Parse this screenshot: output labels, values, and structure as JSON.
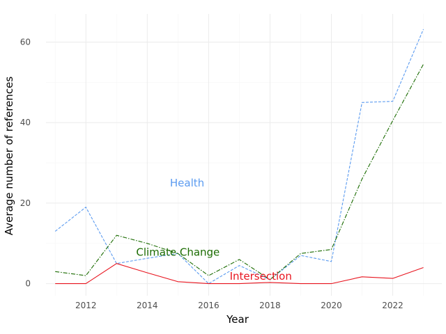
{
  "chart_data": {
    "type": "line",
    "title": "",
    "xlabel": "Year",
    "ylabel": "Average number of references",
    "x": [
      2011,
      2012,
      2013,
      2014,
      2015,
      2016,
      2017,
      2018,
      2019,
      2020,
      2021,
      2022,
      2023
    ],
    "xlim": [
      2010.7,
      2023.6
    ],
    "ylim": [
      -3,
      67
    ],
    "x_ticks": [
      2012,
      2014,
      2016,
      2018,
      2020,
      2022
    ],
    "y_ticks": [
      0,
      20,
      40,
      60
    ],
    "grid": true,
    "legend": "none (labels placed inside plot)",
    "series": [
      {
        "name": "Health",
        "color": "#5b9bf0",
        "line_style": "dashed",
        "values": [
          13,
          19,
          5,
          6.3,
          7.5,
          0,
          4.5,
          1,
          7,
          5.5,
          45,
          45.3,
          63.2
        ]
      },
      {
        "name": "Climate Change",
        "color": "#1a6b00",
        "line_style": "dashdot",
        "values": [
          3,
          2,
          12,
          10,
          7.5,
          2,
          6,
          1,
          7.5,
          8.5,
          26,
          40.5,
          54.5
        ]
      },
      {
        "name": "Intersection",
        "color": "#e8141e",
        "line_style": "solid",
        "values": [
          0,
          0,
          5,
          2.7,
          0.5,
          0,
          0,
          0.3,
          0,
          0,
          1.7,
          1.3,
          4
        ]
      }
    ]
  }
}
